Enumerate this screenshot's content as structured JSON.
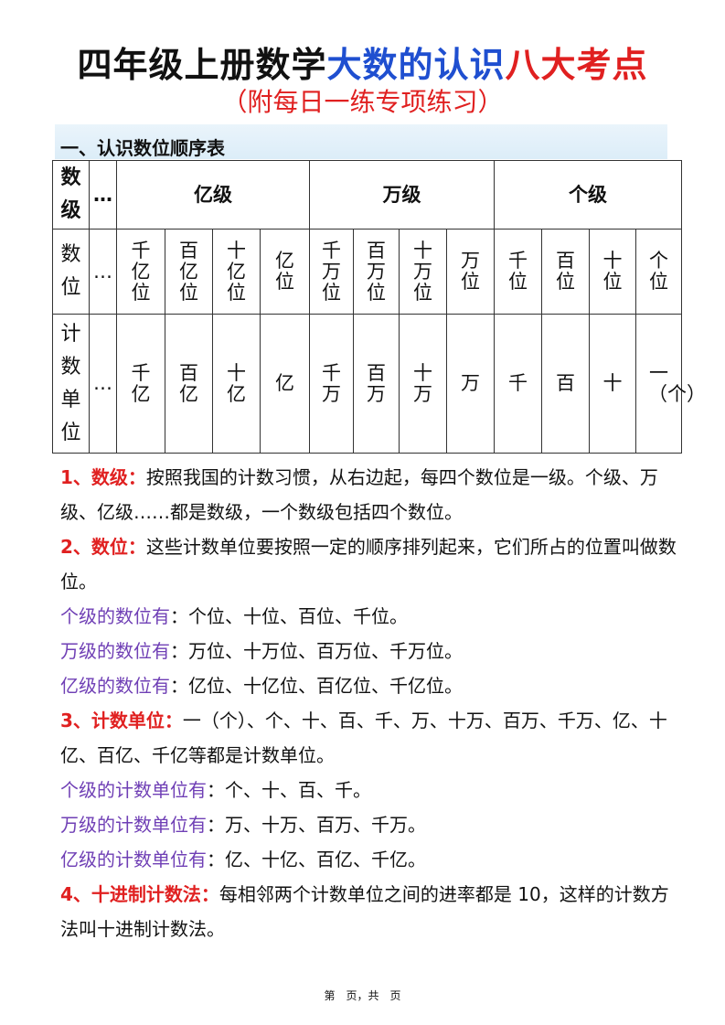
{
  "title": {
    "black": "四年级上册数学",
    "blue": "大数的认识",
    "red": "八大考点",
    "colors": {
      "black": "#111111",
      "blue": "#1f4fd0",
      "red": "#e02020"
    }
  },
  "subtitle": "（附每日一练专项练习）",
  "section1": "一、认识数位顺序表",
  "table": {
    "row_heads": [
      "数级",
      "数位",
      "计数单位"
    ],
    "ellipsis": "…",
    "groups": [
      "亿级",
      "万级",
      "个级"
    ],
    "places": [
      "千亿位",
      "百亿位",
      "十亿位",
      "亿位",
      "千万位",
      "百万位",
      "十万位",
      "万位",
      "千位",
      "百位",
      "十位",
      "个位"
    ],
    "units": [
      "千亿",
      "百亿",
      "十亿",
      "亿",
      "千万",
      "百万",
      "十万",
      "万",
      "千",
      "百",
      "十",
      "一（个）"
    ]
  },
  "points": [
    {
      "label": "1、数级：",
      "text": "按照我国的计数习惯，从右边起，每四个数位是一级。个级、万级、亿级……都是数级，一个数级包括四个数位。"
    },
    {
      "label": "2、数位：",
      "text": "这些计数单位要按照一定的顺序排列起来，它们所占的位置叫做数位。"
    },
    {
      "sub": "个级的数位有",
      "text": "：个位、十位、百位、千位。"
    },
    {
      "sub": "万级的数位有",
      "text": "：万位、十万位、百万位、千万位。"
    },
    {
      "sub": "亿级的数位有",
      "text": "：亿位、十亿位、百亿位、千亿位。"
    },
    {
      "label": "3、计数单位：",
      "text": "一（个）、个、十、百、千、万、十万、百万、千万、亿、十亿、百亿、千亿等都是计数单位。"
    },
    {
      "sub": "个级的计数单位有",
      "text": "：个、十、百、千。"
    },
    {
      "sub": "万级的计数单位有",
      "text": "：万、十万、百万、千万。"
    },
    {
      "sub": "亿级的计数单位有",
      "text": "：亿、十亿、百亿、千亿。"
    },
    {
      "label": "4、十进制计数法：",
      "text": "每相邻两个计数单位之间的进率都是 10，这样的计数方法叫十进制计数法。"
    }
  ],
  "footer": "第　页，共　页"
}
